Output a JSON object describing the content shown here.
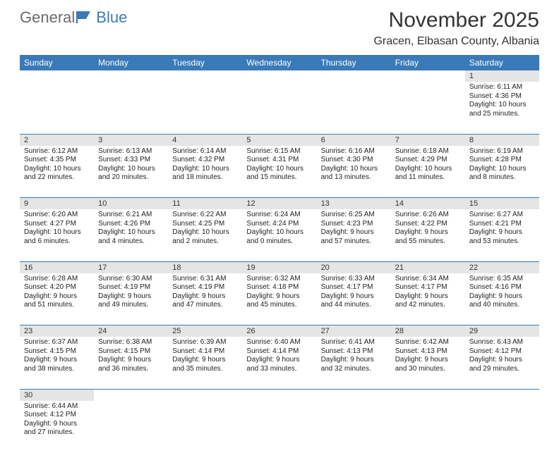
{
  "logo": {
    "text1": "General",
    "text2": "Blue"
  },
  "title": "November 2025",
  "location": "Gracen, Elbasan County, Albania",
  "colors": {
    "header_bg": "#3a7ab8",
    "daynum_bg": "#e5e5e5",
    "row_border": "#3a7ab8",
    "text": "#222222"
  },
  "day_headers": [
    "Sunday",
    "Monday",
    "Tuesday",
    "Wednesday",
    "Thursday",
    "Friday",
    "Saturday"
  ],
  "weeks": [
    [
      null,
      null,
      null,
      null,
      null,
      null,
      {
        "n": "1",
        "sr": "6:11 AM",
        "ss": "4:36 PM",
        "dl": "10 hours and 25 minutes."
      }
    ],
    [
      {
        "n": "2",
        "sr": "6:12 AM",
        "ss": "4:35 PM",
        "dl": "10 hours and 22 minutes."
      },
      {
        "n": "3",
        "sr": "6:13 AM",
        "ss": "4:33 PM",
        "dl": "10 hours and 20 minutes."
      },
      {
        "n": "4",
        "sr": "6:14 AM",
        "ss": "4:32 PM",
        "dl": "10 hours and 18 minutes."
      },
      {
        "n": "5",
        "sr": "6:15 AM",
        "ss": "4:31 PM",
        "dl": "10 hours and 15 minutes."
      },
      {
        "n": "6",
        "sr": "6:16 AM",
        "ss": "4:30 PM",
        "dl": "10 hours and 13 minutes."
      },
      {
        "n": "7",
        "sr": "6:18 AM",
        "ss": "4:29 PM",
        "dl": "10 hours and 11 minutes."
      },
      {
        "n": "8",
        "sr": "6:19 AM",
        "ss": "4:28 PM",
        "dl": "10 hours and 8 minutes."
      }
    ],
    [
      {
        "n": "9",
        "sr": "6:20 AM",
        "ss": "4:27 PM",
        "dl": "10 hours and 6 minutes."
      },
      {
        "n": "10",
        "sr": "6:21 AM",
        "ss": "4:26 PM",
        "dl": "10 hours and 4 minutes."
      },
      {
        "n": "11",
        "sr": "6:22 AM",
        "ss": "4:25 PM",
        "dl": "10 hours and 2 minutes."
      },
      {
        "n": "12",
        "sr": "6:24 AM",
        "ss": "4:24 PM",
        "dl": "10 hours and 0 minutes."
      },
      {
        "n": "13",
        "sr": "6:25 AM",
        "ss": "4:23 PM",
        "dl": "9 hours and 57 minutes."
      },
      {
        "n": "14",
        "sr": "6:26 AM",
        "ss": "4:22 PM",
        "dl": "9 hours and 55 minutes."
      },
      {
        "n": "15",
        "sr": "6:27 AM",
        "ss": "4:21 PM",
        "dl": "9 hours and 53 minutes."
      }
    ],
    [
      {
        "n": "16",
        "sr": "6:28 AM",
        "ss": "4:20 PM",
        "dl": "9 hours and 51 minutes."
      },
      {
        "n": "17",
        "sr": "6:30 AM",
        "ss": "4:19 PM",
        "dl": "9 hours and 49 minutes."
      },
      {
        "n": "18",
        "sr": "6:31 AM",
        "ss": "4:19 PM",
        "dl": "9 hours and 47 minutes."
      },
      {
        "n": "19",
        "sr": "6:32 AM",
        "ss": "4:18 PM",
        "dl": "9 hours and 45 minutes."
      },
      {
        "n": "20",
        "sr": "6:33 AM",
        "ss": "4:17 PM",
        "dl": "9 hours and 44 minutes."
      },
      {
        "n": "21",
        "sr": "6:34 AM",
        "ss": "4:17 PM",
        "dl": "9 hours and 42 minutes."
      },
      {
        "n": "22",
        "sr": "6:35 AM",
        "ss": "4:16 PM",
        "dl": "9 hours and 40 minutes."
      }
    ],
    [
      {
        "n": "23",
        "sr": "6:37 AM",
        "ss": "4:15 PM",
        "dl": "9 hours and 38 minutes."
      },
      {
        "n": "24",
        "sr": "6:38 AM",
        "ss": "4:15 PM",
        "dl": "9 hours and 36 minutes."
      },
      {
        "n": "25",
        "sr": "6:39 AM",
        "ss": "4:14 PM",
        "dl": "9 hours and 35 minutes."
      },
      {
        "n": "26",
        "sr": "6:40 AM",
        "ss": "4:14 PM",
        "dl": "9 hours and 33 minutes."
      },
      {
        "n": "27",
        "sr": "6:41 AM",
        "ss": "4:13 PM",
        "dl": "9 hours and 32 minutes."
      },
      {
        "n": "28",
        "sr": "6:42 AM",
        "ss": "4:13 PM",
        "dl": "9 hours and 30 minutes."
      },
      {
        "n": "29",
        "sr": "6:43 AM",
        "ss": "4:12 PM",
        "dl": "9 hours and 29 minutes."
      }
    ],
    [
      {
        "n": "30",
        "sr": "6:44 AM",
        "ss": "4:12 PM",
        "dl": "9 hours and 27 minutes."
      },
      null,
      null,
      null,
      null,
      null,
      null
    ]
  ],
  "labels": {
    "sunrise_prefix": "Sunrise: ",
    "sunset_prefix": "Sunset: ",
    "daylight_prefix": "Daylight: "
  }
}
